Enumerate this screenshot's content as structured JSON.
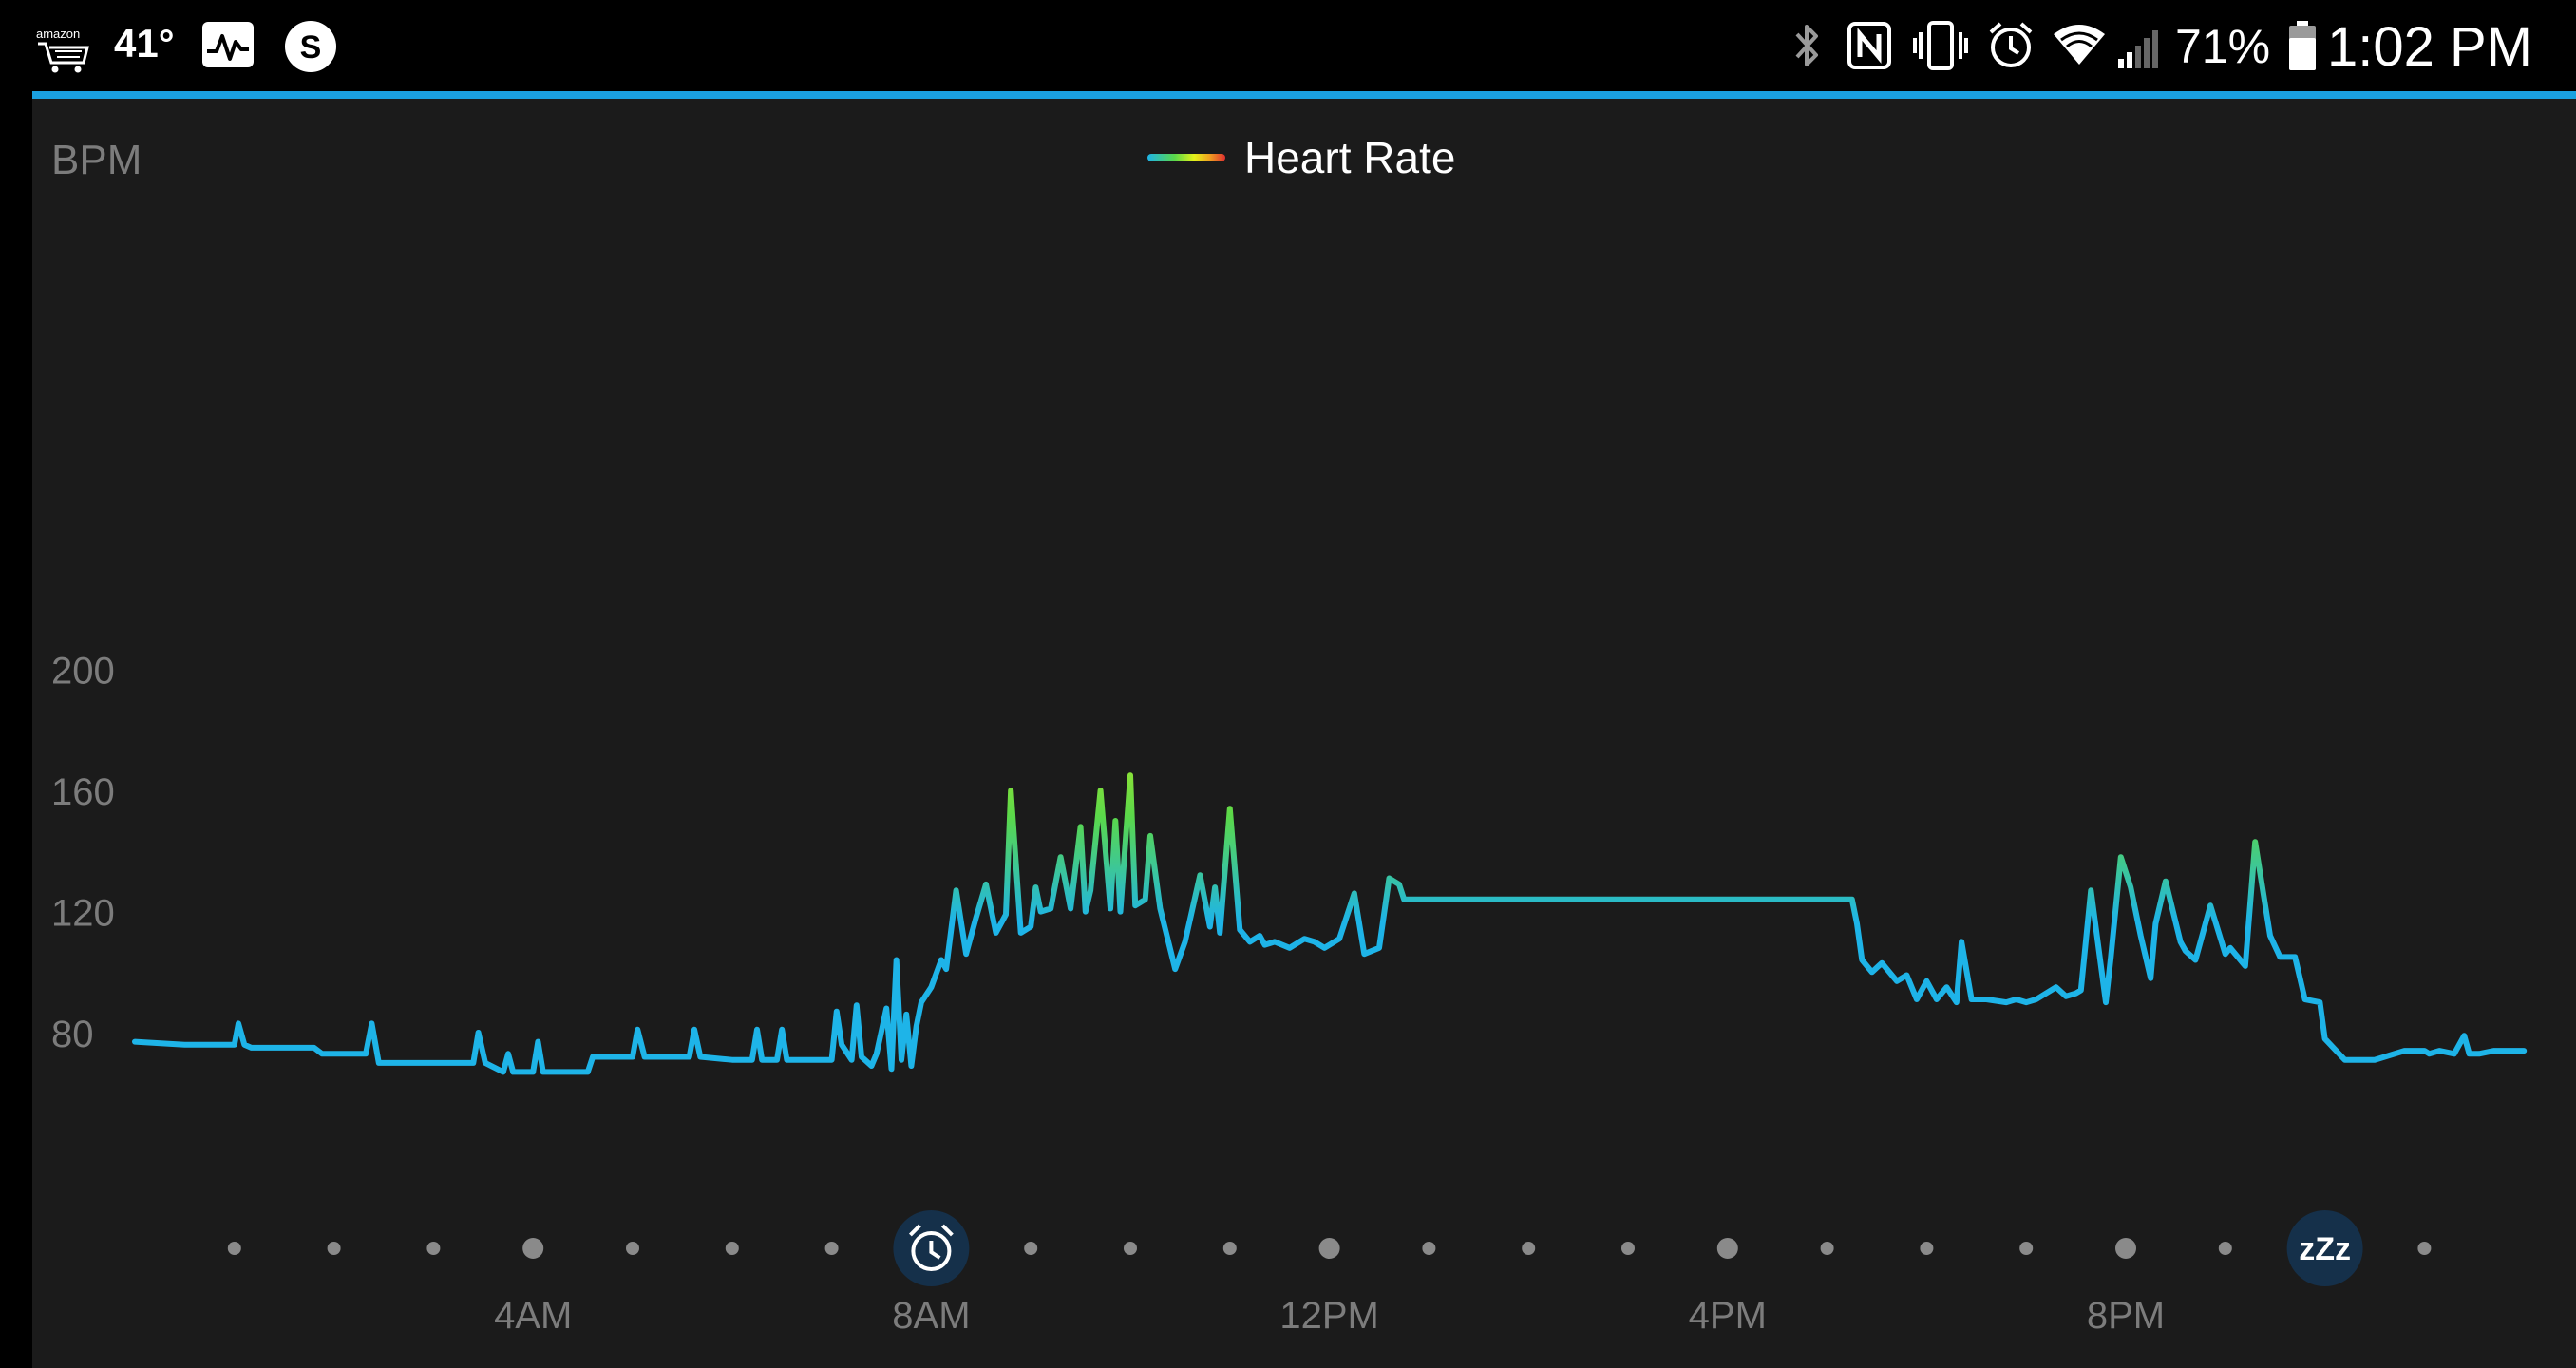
{
  "status_bar": {
    "left_app_label": "amazon",
    "temperature": "41°",
    "battery_percent": "71%",
    "time": "1:02 PM",
    "signal_bars_lit": 2,
    "signal_bars_total": 5,
    "battery_level": 0.71,
    "icons": [
      "amazon-cart-icon",
      "activity-chart-icon",
      "s-circle-app-icon",
      "bluetooth-icon",
      "nfc-icon",
      "vibrate-icon",
      "alarm-icon",
      "wifi-icon",
      "cell-signal-icon",
      "battery-icon"
    ]
  },
  "colors": {
    "background": "#1b1b1b",
    "accent": "#1aa0e0",
    "low_hr": "#1eb4e8",
    "mid_hr": "#5ad84a",
    "high_hr": "#e4f21a",
    "axis_text": "#7c7c7c",
    "marker_badge": "#15304a"
  },
  "chart_data": {
    "type": "line",
    "ylabel": "BPM",
    "legend": [
      {
        "name": "Heart Rate",
        "gradient": [
          "#1eb4e8",
          "#5ad84a",
          "#e4f21a",
          "#f0a020",
          "#e03030"
        ]
      }
    ],
    "legend_position": "top-center",
    "yticks": [
      80,
      120,
      160,
      200
    ],
    "ylim": [
      40,
      240
    ],
    "xlim": [
      0,
      24
    ],
    "x_unit": "hour of day",
    "xtick_labels": [
      {
        "hour": 4,
        "label": "4AM"
      },
      {
        "hour": 8,
        "label": "8AM"
      },
      {
        "hour": 12,
        "label": "12PM"
      },
      {
        "hour": 16,
        "label": "4PM"
      },
      {
        "hour": 20,
        "label": "8PM"
      }
    ],
    "grid": false,
    "markers": [
      {
        "hour": 8,
        "name": "wake-up",
        "icon": "alarm-clock-icon",
        "label": ""
      },
      {
        "hour": 22,
        "name": "sleep",
        "icon": "sleep-zzz-icon",
        "label": "zZz"
      }
    ],
    "series": [
      {
        "name": "Heart Rate",
        "x": [
          0.0,
          0.5,
          1.0,
          1.04,
          1.1,
          1.17,
          1.5,
          1.8,
          1.88,
          2.0,
          2.32,
          2.38,
          2.45,
          2.5,
          2.8,
          3.0,
          3.4,
          3.45,
          3.52,
          3.7,
          3.75,
          3.8,
          3.95,
          4.0,
          4.05,
          4.1,
          4.5,
          4.55,
          4.6,
          4.8,
          5.0,
          5.05,
          5.12,
          5.3,
          5.57,
          5.62,
          5.68,
          6.0,
          6.2,
          6.25,
          6.3,
          6.45,
          6.5,
          6.55,
          6.8,
          7.0,
          7.05,
          7.1,
          7.2,
          7.25,
          7.3,
          7.4,
          7.45,
          7.55,
          7.6,
          7.65,
          7.7,
          7.75,
          7.8,
          7.85,
          7.9,
          8.0,
          8.1,
          8.15,
          8.25,
          8.35,
          8.45,
          8.55,
          8.65,
          8.75,
          8.8,
          8.9,
          9.0,
          9.05,
          9.1,
          9.2,
          9.3,
          9.4,
          9.5,
          9.55,
          9.6,
          9.7,
          9.8,
          9.85,
          9.9,
          10.0,
          10.05,
          10.15,
          10.2,
          10.3,
          10.45,
          10.55,
          10.7,
          10.8,
          10.85,
          10.9,
          11.0,
          11.1,
          11.2,
          11.3,
          11.35,
          11.45,
          11.6,
          11.75,
          11.85,
          11.95,
          12.1,
          12.25,
          12.35,
          12.5,
          12.6,
          12.7,
          12.75,
          12.85,
          12.95,
          13.05,
          13.1,
          13.5,
          14.0,
          14.5,
          15.0,
          15.5,
          16.0,
          16.5,
          17.0,
          17.25,
          17.3,
          17.35,
          17.45,
          17.55,
          17.7,
          17.8,
          17.9,
          18.0,
          18.1,
          18.2,
          18.3,
          18.35,
          18.45,
          18.6,
          18.8,
          18.9,
          19.0,
          19.1,
          19.3,
          19.4,
          19.5,
          19.55,
          19.65,
          19.8,
          19.85,
          19.95,
          20.05,
          20.15,
          20.25,
          20.3,
          20.4,
          20.55,
          20.6,
          20.7,
          20.85,
          21.0,
          21.05,
          21.2,
          21.3,
          21.45,
          21.55,
          21.7,
          21.8,
          21.95,
          22.0,
          22.2,
          22.5,
          22.8,
          23.0,
          23.05,
          23.15,
          23.3,
          23.4,
          23.45,
          23.55,
          23.7,
          24.0
        ],
        "y": [
          77,
          76,
          76,
          83,
          76,
          75,
          75,
          75,
          73,
          73,
          73,
          83,
          70,
          70,
          70,
          70,
          70,
          80,
          70,
          67,
          73,
          67,
          67,
          67,
          77,
          67,
          67,
          67,
          72,
          72,
          72,
          81,
          72,
          72,
          72,
          81,
          72,
          71,
          71,
          81,
          71,
          71,
          81,
          71,
          71,
          71,
          87,
          76,
          71,
          89,
          72,
          69,
          73,
          88,
          68,
          104,
          71,
          86,
          69,
          82,
          90,
          95,
          104,
          101,
          127,
          106,
          118,
          129,
          113,
          119,
          160,
          113,
          115,
          128,
          120,
          121,
          138,
          121,
          148,
          120,
          127,
          160,
          121,
          150,
          120,
          165,
          122,
          124,
          145,
          121,
          101,
          110,
          132,
          115,
          128,
          113,
          154,
          114,
          110,
          112,
          109,
          110,
          108,
          111,
          110,
          108,
          111,
          126,
          106,
          108,
          131,
          129,
          124,
          124,
          124,
          124,
          124,
          124,
          124,
          124,
          124,
          124,
          124,
          124,
          124,
          124,
          116,
          104,
          100,
          103,
          97,
          99,
          91,
          97,
          91,
          95,
          90,
          110,
          91,
          91,
          90,
          91,
          90,
          91,
          95,
          92,
          93,
          94,
          127,
          90,
          105,
          138,
          128,
          112,
          98,
          116,
          130,
          110,
          107,
          104,
          122,
          106,
          108,
          102,
          143,
          112,
          105,
          105,
          91,
          90,
          78,
          71,
          71,
          74,
          74,
          73,
          74,
          73,
          79,
          73,
          73,
          74,
          74
        ]
      }
    ]
  }
}
